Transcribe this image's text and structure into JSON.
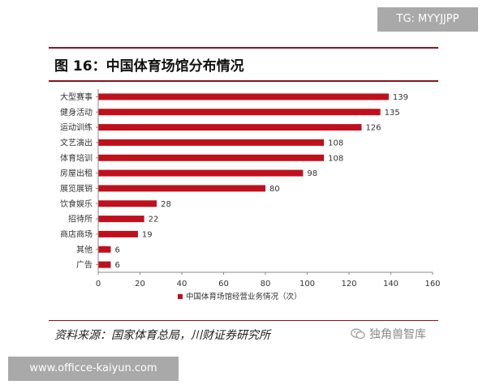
{
  "watermark_top": "TG: MYYJJPP",
  "figure_title": "图 16：中国体育场馆分布情况",
  "source_note": "资料来源：国家体育总局，川财证券研究所",
  "brand_watermark": "独角兽智库",
  "brand_icon": "wechat-icon",
  "url_watermark": "www.officce-kaiyun.com",
  "colors": {
    "bar": "#c0101c",
    "title_rule": "#8a1520",
    "axis": "#888888",
    "watermark_bg": "#a9a9a9"
  },
  "chart_data": {
    "type": "bar",
    "orientation": "horizontal",
    "title": "",
    "xlabel": "",
    "ylabel": "",
    "categories": [
      "大型赛事",
      "健身活动",
      "运动训练",
      "文艺演出",
      "体育培训",
      "房屋出租",
      "展览展销",
      "饮食娱乐",
      "招待所",
      "商店商场",
      "其他",
      "广告"
    ],
    "series": [
      {
        "name": "中国体育场馆经营业务情况（次）",
        "values": [
          139,
          135,
          126,
          108,
          108,
          98,
          80,
          28,
          22,
          19,
          6,
          6
        ]
      }
    ],
    "xlim": [
      0,
      160
    ],
    "xticks": [
      0,
      20,
      40,
      60,
      80,
      100,
      120,
      140,
      160
    ],
    "grid": false,
    "legend_position": "bottom",
    "data_labels": true
  }
}
